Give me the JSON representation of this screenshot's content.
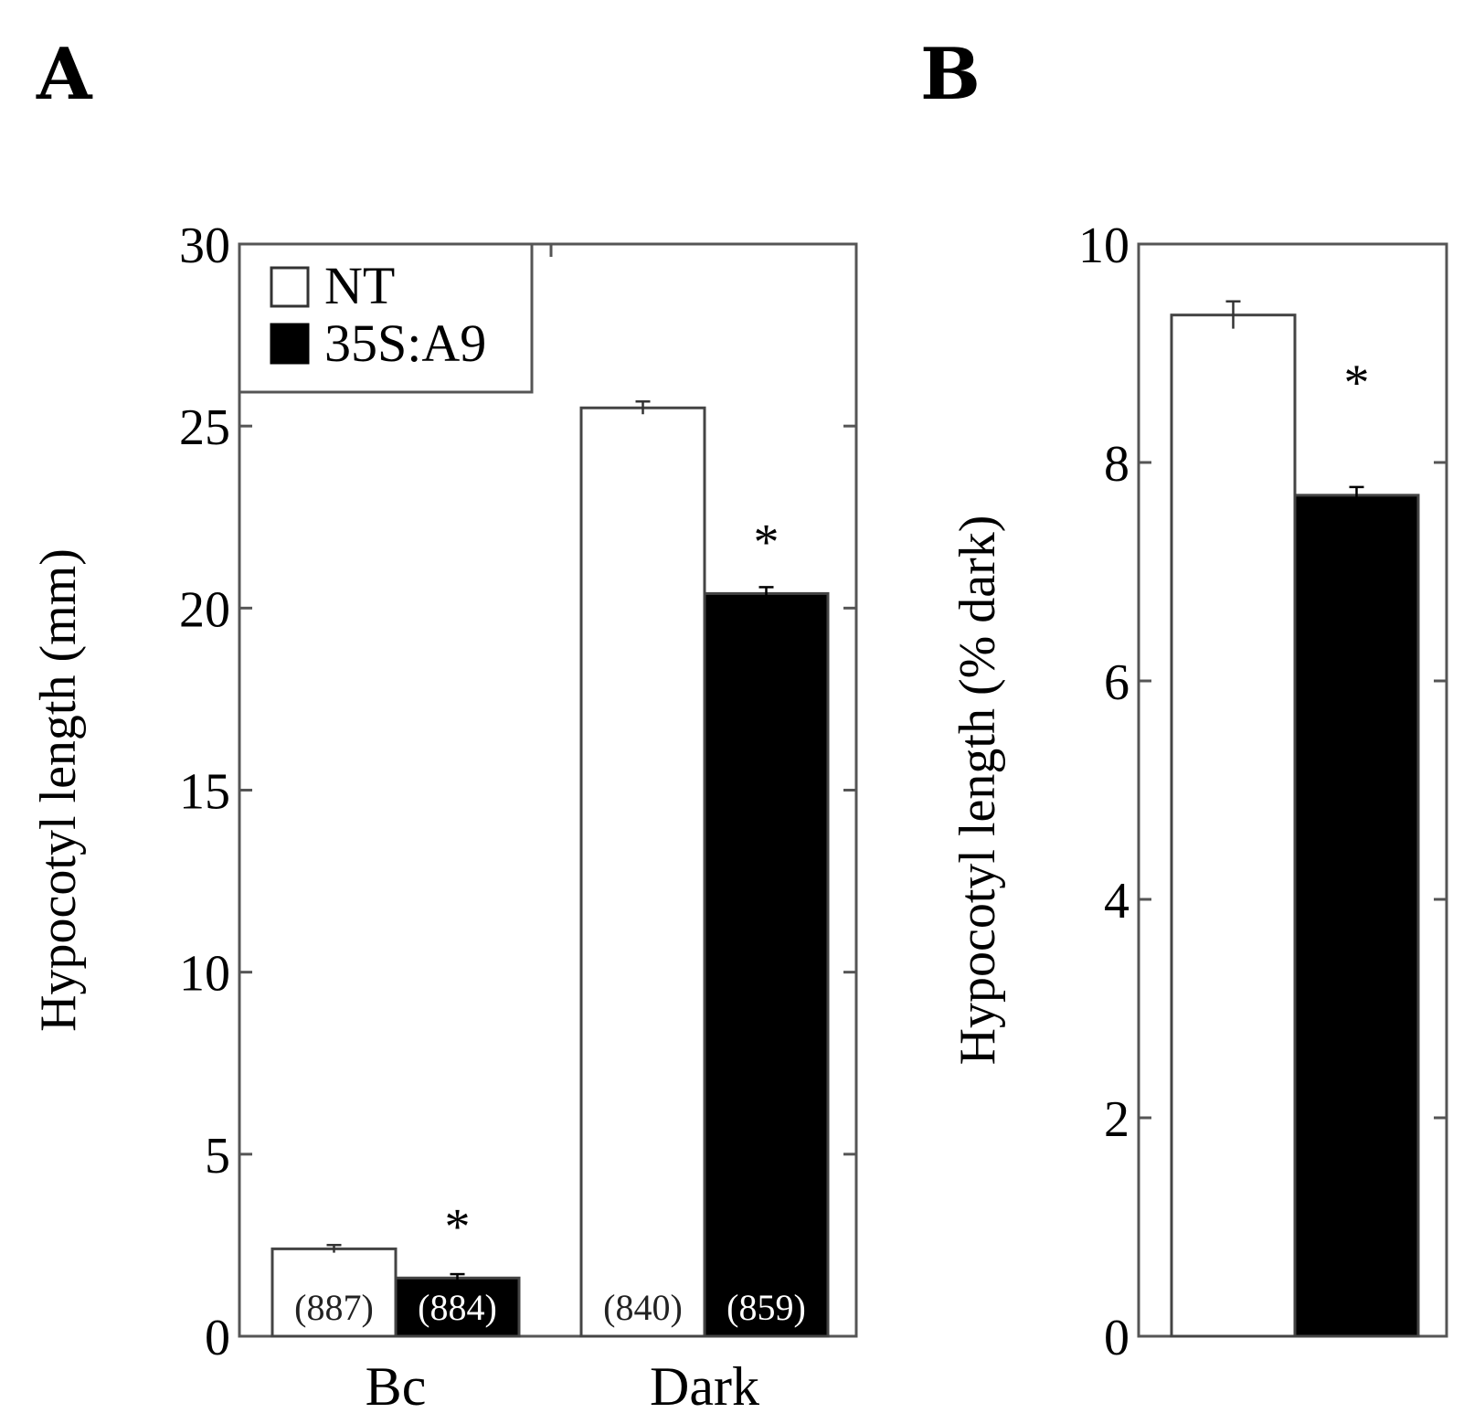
{
  "panels": {
    "a_label": "A",
    "b_label": "B"
  },
  "legend": {
    "nt": "NT",
    "a9": "35S:A9"
  },
  "colors": {
    "nt": "#ffffff",
    "a9": "#000000",
    "axis": "#555555"
  },
  "chart_data": [
    {
      "panel": "A",
      "type": "bar",
      "title": "",
      "ylabel": "Hypocotyl length (mm)",
      "xlabel": "",
      "ylim": [
        0,
        30
      ],
      "yticks": [
        0,
        5,
        10,
        15,
        20,
        25,
        30
      ],
      "categories": [
        "Bc",
        "Dark"
      ],
      "series": [
        {
          "name": "NT",
          "values": [
            2.4,
            25.5
          ],
          "errors": [
            0.03,
            0.1
          ],
          "n": [
            "(887)",
            "(840)"
          ]
        },
        {
          "name": "35S:A9",
          "values": [
            1.6,
            20.4
          ],
          "errors": [
            0.03,
            0.1
          ],
          "n": [
            "(884)",
            "(859)"
          ]
        }
      ],
      "significance": [
        {
          "category": "Bc",
          "series": "35S:A9",
          "mark": "*"
        },
        {
          "category": "Dark",
          "series": "35S:A9",
          "mark": "*"
        }
      ],
      "legend_position": "top-left"
    },
    {
      "panel": "B",
      "type": "bar",
      "title": "",
      "ylabel": "Hypocotyl length (% dark)",
      "xlabel": "",
      "ylim": [
        0,
        10
      ],
      "yticks": [
        0,
        2,
        4,
        6,
        8,
        10
      ],
      "categories": [
        ""
      ],
      "series": [
        {
          "name": "NT",
          "values": [
            9.35
          ],
          "errors": [
            0.1
          ]
        },
        {
          "name": "35S:A9",
          "values": [
            7.7
          ],
          "errors": [
            0.05
          ]
        }
      ],
      "significance": [
        {
          "category": "",
          "series": "35S:A9",
          "mark": "*"
        }
      ]
    }
  ]
}
